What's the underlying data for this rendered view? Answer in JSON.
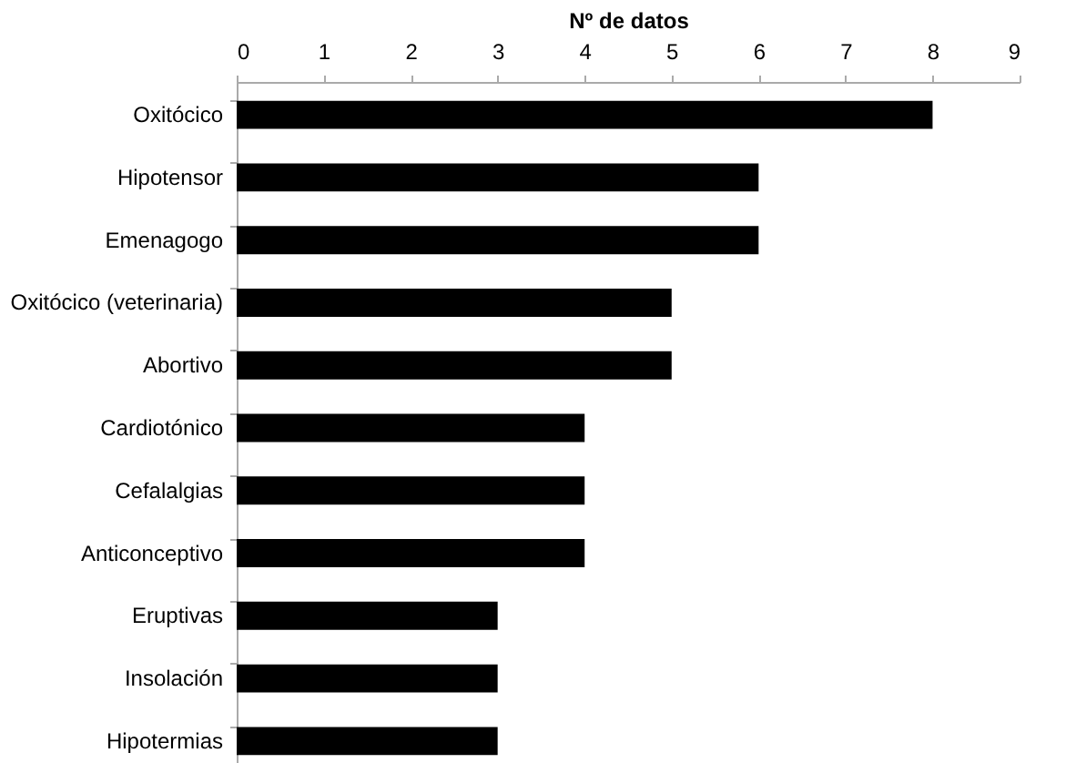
{
  "chart_data": {
    "type": "bar",
    "orientation": "horizontal",
    "xlabel": "Nº de datos",
    "categories": [
      "Oxitócico",
      "Hipotensor",
      "Emenagogo",
      "Oxitócico (veterinaria)",
      "Abortivo",
      "Cardiotónico",
      "Cefalalgias",
      "Anticonceptivo",
      "Eruptivas",
      "Insolación",
      "Hipotermias"
    ],
    "values": [
      8,
      6,
      6,
      5,
      5,
      4,
      4,
      4,
      3,
      3,
      3
    ],
    "color": "#000000",
    "xlim": [
      0,
      9
    ],
    "xticks": [
      0,
      1,
      2,
      3,
      4,
      5,
      6,
      7,
      8,
      9
    ],
    "grid": false
  }
}
